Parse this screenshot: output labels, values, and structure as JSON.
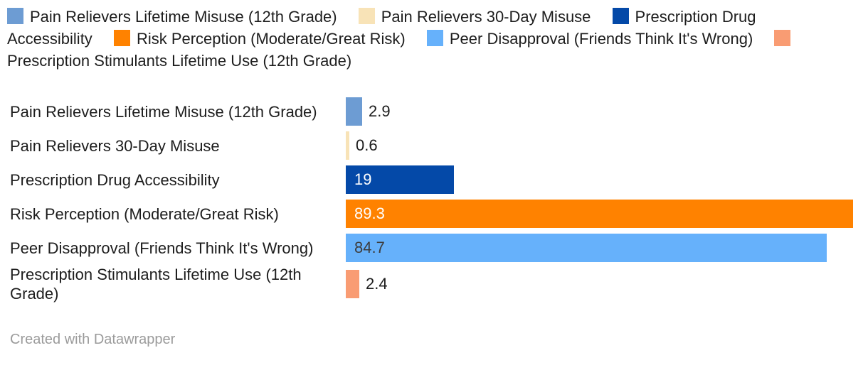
{
  "chart_data": {
    "type": "bar",
    "orientation": "horizontal",
    "title": "",
    "xlabel": "",
    "ylabel": "",
    "xlim": [
      0,
      90.7
    ],
    "grid": false,
    "legend_position": "top",
    "categories": [
      "Pain Relievers Lifetime Misuse (12th Grade)",
      "Pain Relievers 30-Day Misuse",
      "Prescription Drug Accessibility",
      "Risk Perception (Moderate/Great Risk)",
      "Peer Disapproval (Friends Think It's Wrong)",
      "Prescription Stimulants Lifetime Use (12th Grade)"
    ],
    "values": [
      2.9,
      0.6,
      19,
      89.3,
      84.7,
      2.4
    ],
    "value_labels": [
      "2.9",
      "0.6",
      "19",
      "89.3",
      "84.7",
      "2.4"
    ],
    "bar_colors": [
      "#6d9cd3",
      "#f8e3b7",
      "#0449a8",
      "#ff8200",
      "#66b1fb",
      "#f99c73"
    ],
    "value_label_placement": [
      "outside",
      "outside",
      "inside",
      "inside",
      "inside",
      "outside"
    ],
    "value_label_colors": [
      "#1d1d1d",
      "#1d1d1d",
      "#ffffff",
      "#ffffff",
      "#3d3d3d",
      "#1d1d1d"
    ],
    "legend": [
      {
        "label": "Pain Relievers Lifetime Misuse (12th Grade)",
        "color": "#6d9cd3"
      },
      {
        "label": "Pain Relievers 30-Day Misuse",
        "color": "#f8e3b7"
      },
      {
        "label": "Prescription Drug Accessibility",
        "color": "#0449a8"
      },
      {
        "label": "Risk Perception (Moderate/Great Risk)",
        "color": "#ff8200"
      },
      {
        "label": "Peer Disapproval (Friends Think It's Wrong)",
        "color": "#66b1fb"
      },
      {
        "label": "Prescription Stimulants Lifetime Use (12th Grade)",
        "color": "#f99c73"
      }
    ]
  },
  "footer": {
    "credit": "Created with Datawrapper"
  },
  "colors": {
    "text": "#1d1d1d",
    "footer_text": "#9b9b9b",
    "background": "#ffffff"
  }
}
